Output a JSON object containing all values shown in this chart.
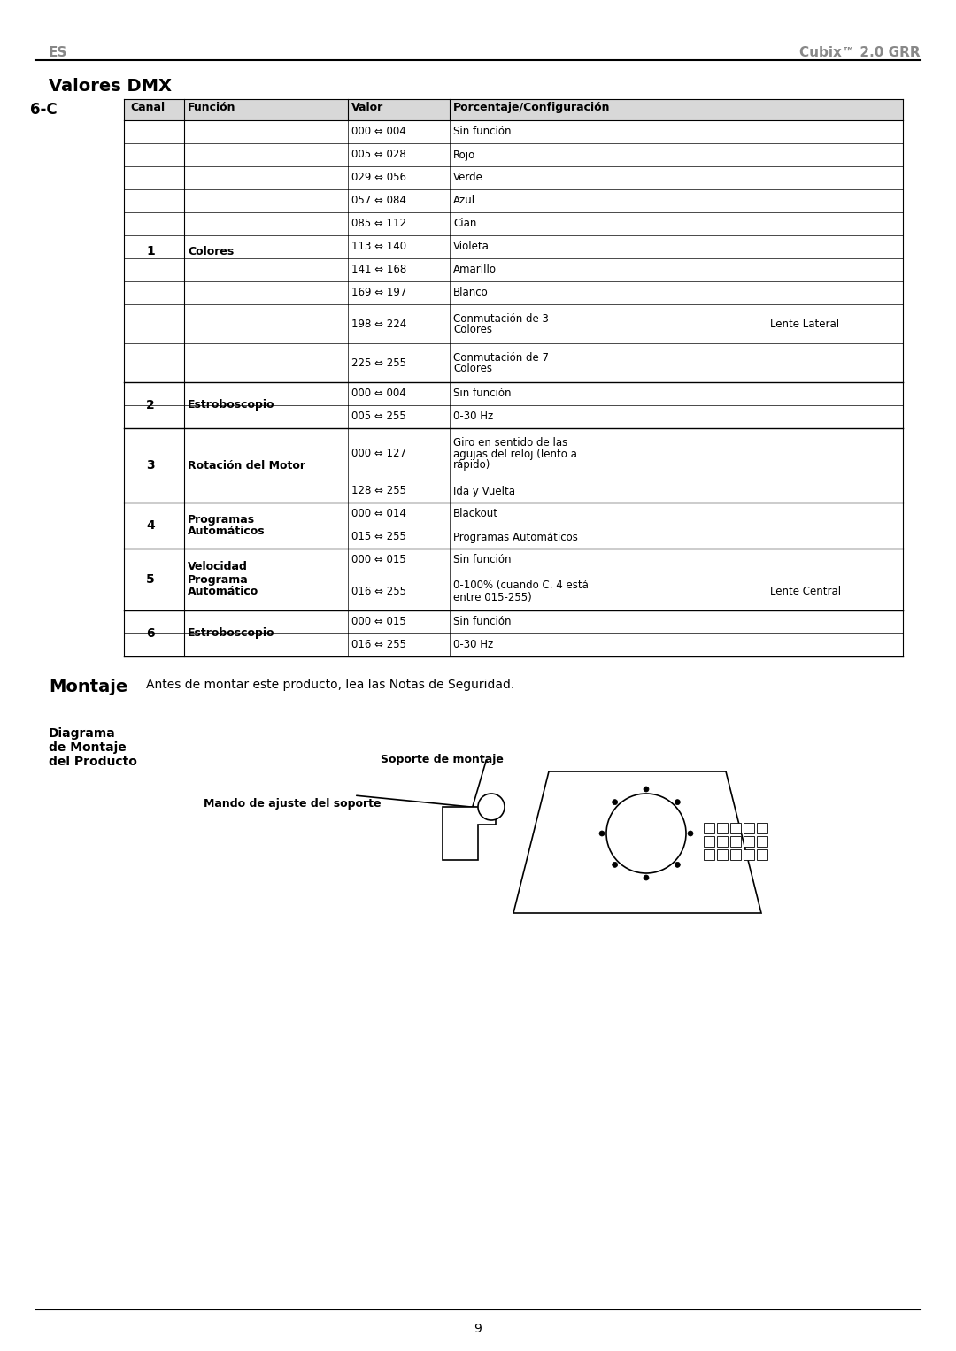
{
  "page_title_left": "ES",
  "page_title_right": "Cubix™ 2.0 GRR",
  "section_title": "Valores DMX",
  "table_label": "6-C",
  "header": [
    "Canal",
    "Función",
    "Valor",
    "Porcentaje/Configuración"
  ],
  "rows": [
    {
      "canal": "1",
      "funcion": "Colores",
      "valor": "000 ⇔ 004",
      "config": "Sin función",
      "note": ""
    },
    {
      "canal": "",
      "funcion": "",
      "valor": "005 ⇔ 028",
      "config": "Rojo",
      "note": ""
    },
    {
      "canal": "",
      "funcion": "",
      "valor": "029 ⇔ 056",
      "config": "Verde",
      "note": ""
    },
    {
      "canal": "",
      "funcion": "",
      "valor": "057 ⇔ 084",
      "config": "Azul",
      "note": ""
    },
    {
      "canal": "",
      "funcion": "",
      "valor": "085 ⇔ 112",
      "config": "Cian",
      "note": ""
    },
    {
      "canal": "",
      "funcion": "",
      "valor": "113 ⇔ 140",
      "config": "Violeta",
      "note": ""
    },
    {
      "canal": "",
      "funcion": "",
      "valor": "141 ⇔ 168",
      "config": "Amarillo",
      "note": ""
    },
    {
      "canal": "",
      "funcion": "",
      "valor": "169 ⇔ 197",
      "config": "Blanco",
      "note": ""
    },
    {
      "canal": "",
      "funcion": "",
      "valor": "198 ⇔ 224",
      "config": "Conmutación de 3\nColores",
      "note": "Lente Lateral"
    },
    {
      "canal": "",
      "funcion": "",
      "valor": "225 ⇔ 255",
      "config": "Conmutación de 7\nColores",
      "note": ""
    },
    {
      "canal": "2",
      "funcion": "Estroboscopio",
      "valor": "000 ⇔ 004",
      "config": "Sin función",
      "note": ""
    },
    {
      "canal": "",
      "funcion": "",
      "valor": "005 ⇔ 255",
      "config": "0-30 Hz",
      "note": ""
    },
    {
      "canal": "3",
      "funcion": "Rotación del Motor",
      "valor": "000 ⇔ 127",
      "config": "Giro en sentido de las\nagujas del reloj (lento a\nrápido)",
      "note": ""
    },
    {
      "canal": "",
      "funcion": "",
      "valor": "128 ⇔ 255",
      "config": "Ida y Vuelta",
      "note": ""
    },
    {
      "canal": "4",
      "funcion": "Programas\nAutomáticos",
      "valor": "000 ⇔ 014",
      "config": "Blackout",
      "note": ""
    },
    {
      "canal": "",
      "funcion": "",
      "valor": "015 ⇔ 255",
      "config": "Programas Automáticos",
      "note": ""
    },
    {
      "canal": "5",
      "funcion": "Velocidad\nPrograma\nAutomático",
      "valor": "000 ⇔ 015",
      "config": "Sin función",
      "note": ""
    },
    {
      "canal": "",
      "funcion": "",
      "valor": "016 ⇔ 255",
      "config": "0-100% (cuando C. 4 está\nentre 015-255)",
      "note": "Lente Central"
    },
    {
      "canal": "6",
      "funcion": "Estroboscopio",
      "valor": "000 ⇔ 015",
      "config": "Sin función",
      "note": ""
    },
    {
      "canal": "",
      "funcion": "",
      "valor": "016 ⇔ 255",
      "config": "0-30 Hz",
      "note": ""
    }
  ],
  "montaje_title": "Montaje",
  "montaje_text": "Antes de montar este producto, lea las Notas de Seguridad.",
  "diagrama_label": "Diagrama\nde Montaje\ndel Producto",
  "soporte_label": "Soporte de montaje",
  "mando_label": "Mando de ajuste del soporte",
  "page_number": "9",
  "bg_color": "#ffffff",
  "header_bg": "#d8d8d8",
  "row_bg_white": "#ffffff",
  "text_color": "#000000",
  "gray_text": "#808080",
  "border_color": "#000000"
}
